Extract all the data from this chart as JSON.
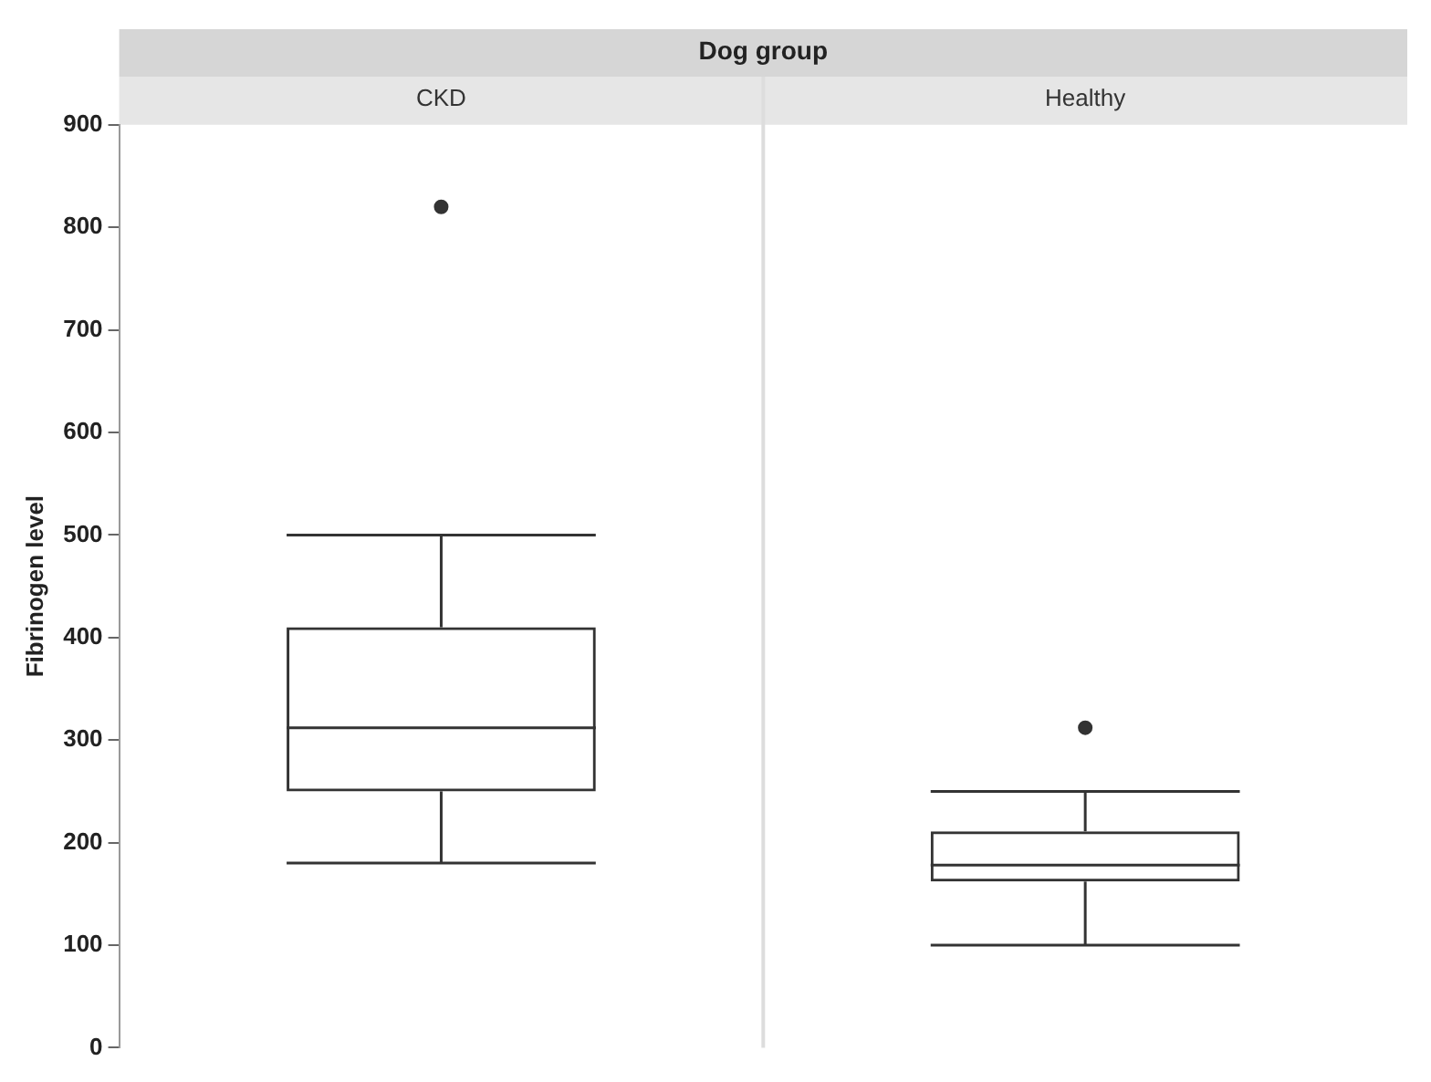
{
  "chart_data": {
    "type": "box",
    "xlabel": "Dog group",
    "ylabel": "Fibrinogen level",
    "categories": [
      "CKD",
      "Healthy"
    ],
    "boxes": [
      {
        "low": 180,
        "q1": 250,
        "median": 312,
        "q3": 410,
        "high": 500,
        "outliers": [
          820
        ]
      },
      {
        "low": 100,
        "q1": 162,
        "median": 178,
        "q3": 211,
        "high": 250,
        "outliers": [
          312
        ]
      }
    ],
    "color": "#333333",
    "ylim": [
      0,
      900
    ],
    "yticks": [
      0,
      100,
      200,
      300,
      400,
      500,
      600,
      700,
      800,
      900
    ],
    "grid": false,
    "legend": false,
    "marker": "circle"
  }
}
